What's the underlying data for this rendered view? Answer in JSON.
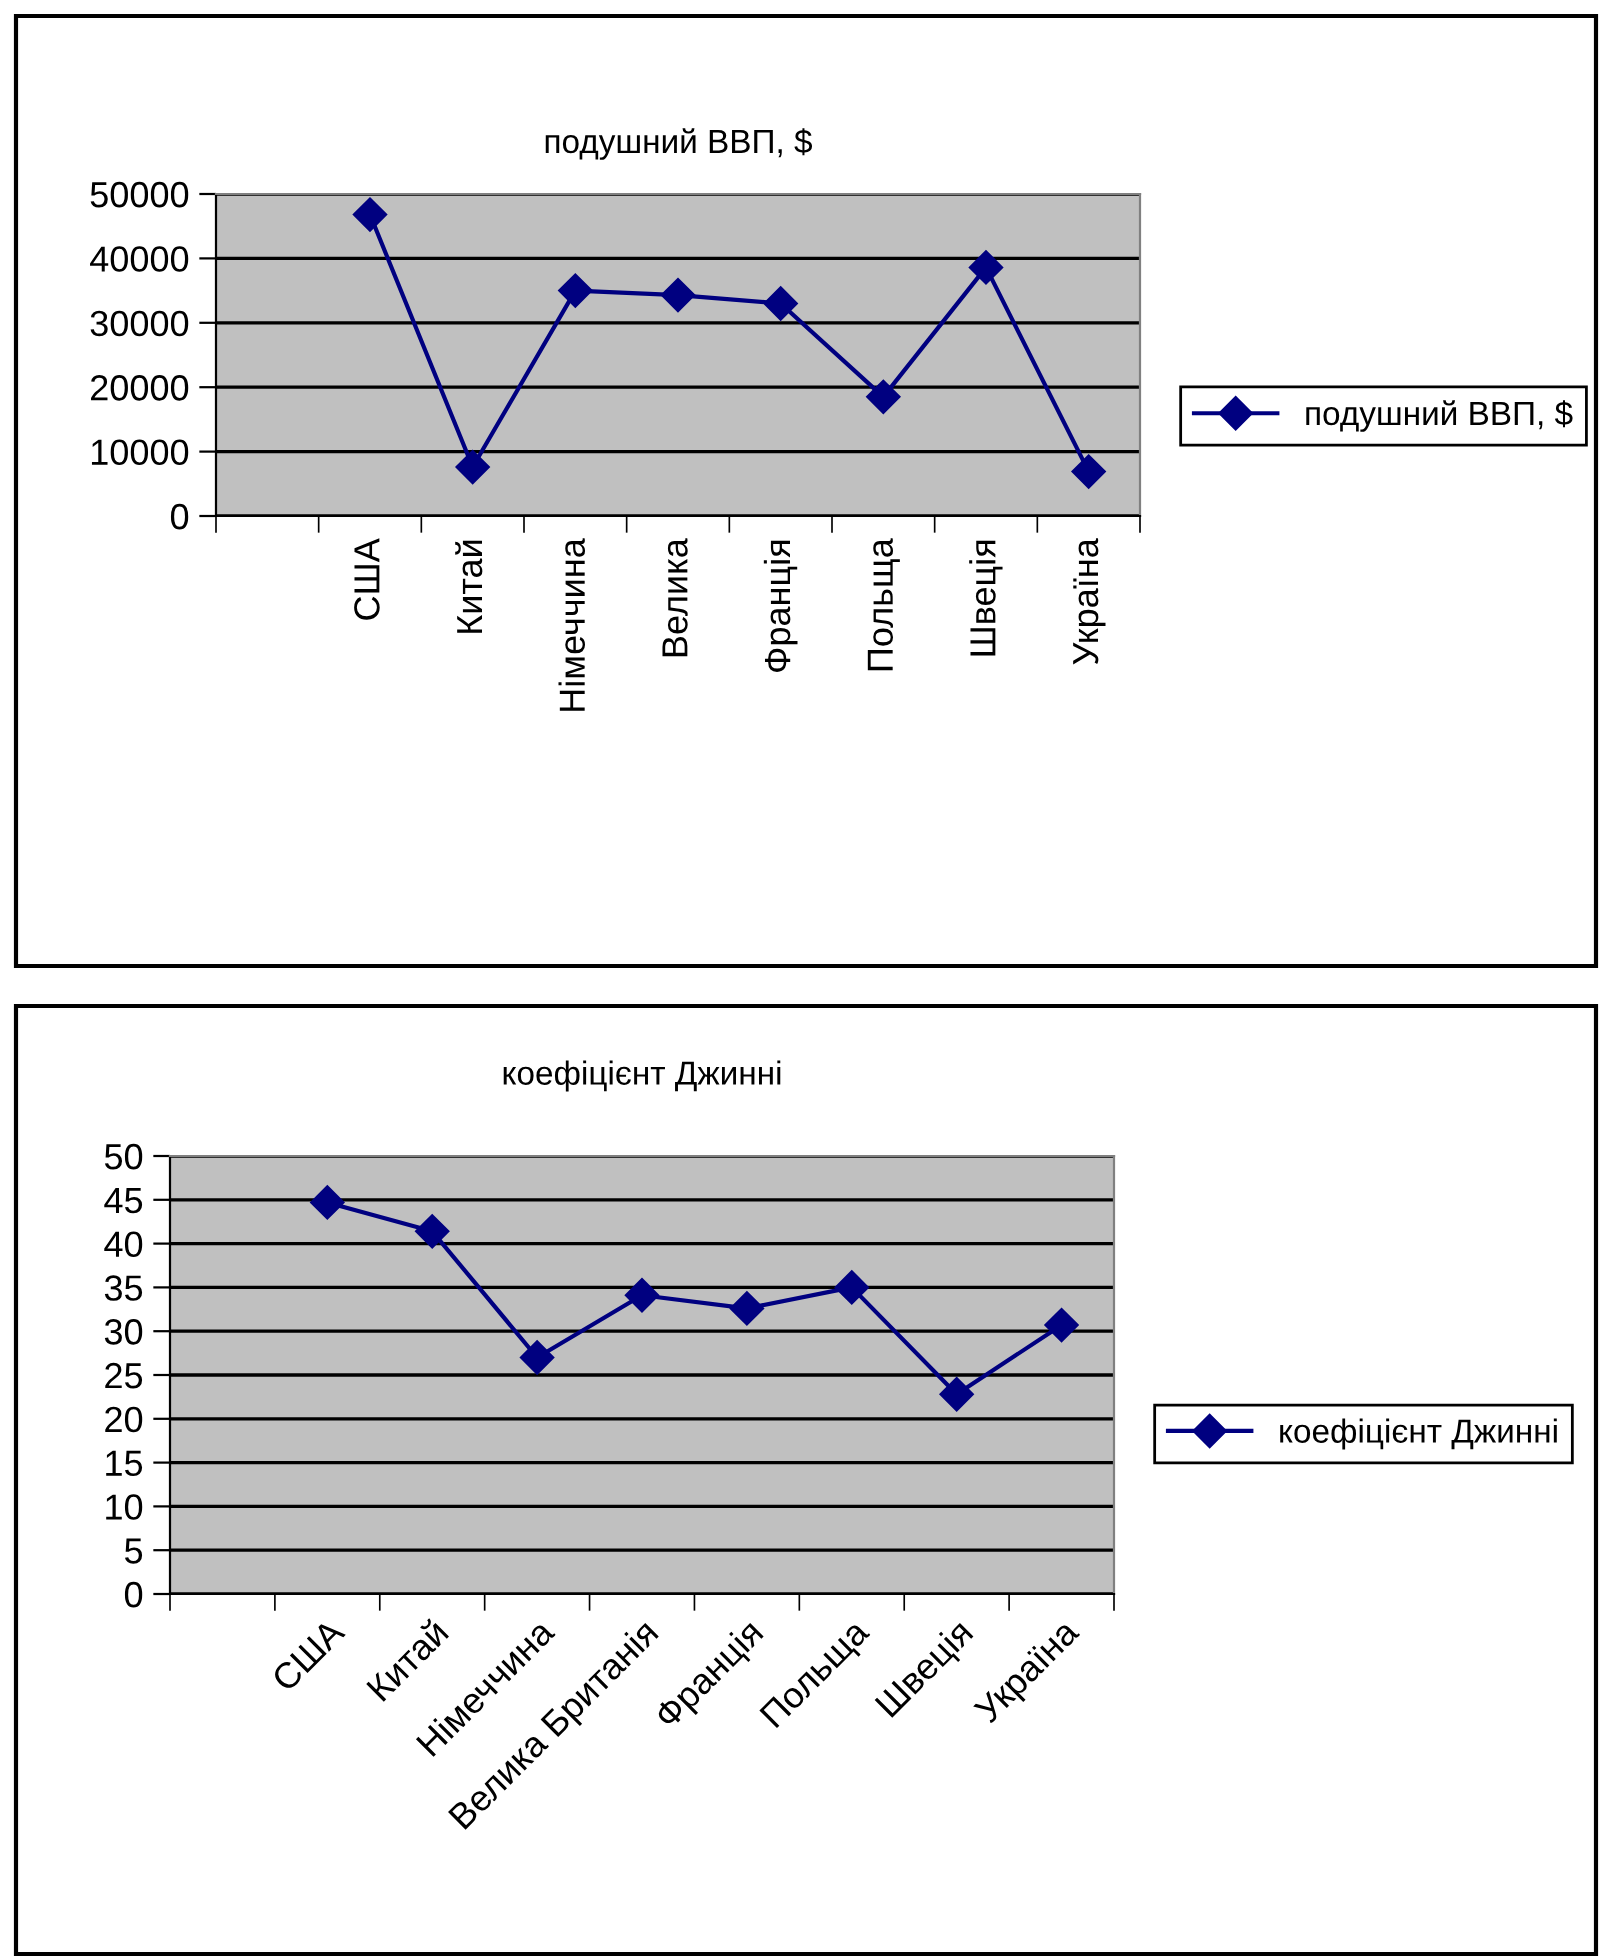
{
  "chart_data": [
    {
      "type": "line",
      "title": "подушний ВВП, $",
      "categories": [
        null,
        "США",
        "Китай",
        "Німеччина",
        "Велика",
        "Франція",
        "Польща",
        "Швеція",
        "Україна"
      ],
      "series": [
        {
          "name": "подушний ВВП, $",
          "color": "#000080",
          "values": [
            null,
            46800,
            7600,
            35000,
            34300,
            33000,
            18500,
            38600,
            6900
          ]
        }
      ],
      "ylim": [
        0,
        50000
      ],
      "yticks": [
        0,
        10000,
        20000,
        30000,
        40000,
        50000
      ],
      "grid": "y",
      "legend": "right",
      "marker": "diamond",
      "line_style": "solid"
    },
    {
      "type": "line",
      "title": "коефіцієнт Джинні",
      "categories": [
        null,
        "США",
        "Китай",
        "Німеччина",
        "Велика Британія",
        "Франція",
        "Польща",
        "Швеція",
        "Україна"
      ],
      "series": [
        {
          "name": "коефіцієнт Джинні",
          "color": "#000080",
          "values": [
            null,
            44.7,
            41.4,
            27.0,
            34.1,
            32.6,
            35.0,
            22.8,
            30.7
          ]
        }
      ],
      "ylim": [
        0,
        50
      ],
      "yticks": [
        0,
        5,
        10,
        15,
        20,
        25,
        30,
        35,
        40,
        45,
        50
      ],
      "grid": "y",
      "legend": "right",
      "marker": "diamond",
      "line_style": "solid"
    }
  ]
}
